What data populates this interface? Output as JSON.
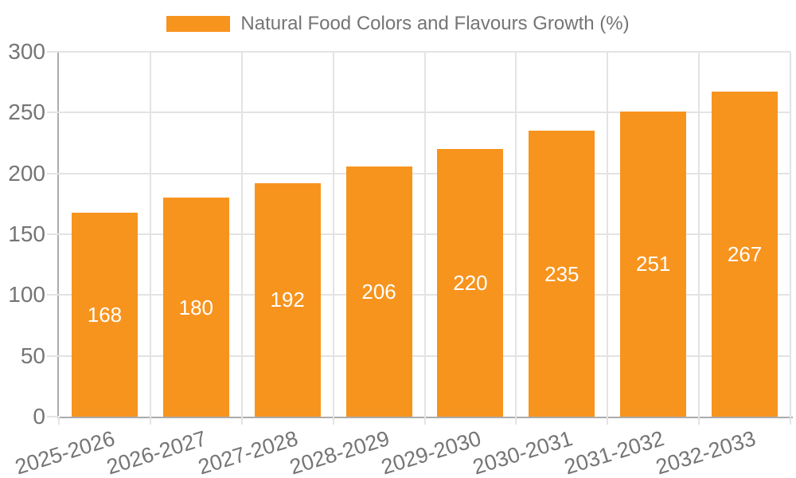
{
  "legend": {
    "label": "Natural Food Colors and Flavours Growth (%)"
  },
  "chart_data": {
    "type": "bar",
    "title": "",
    "series_name": "Natural Food Colors and Flavours Growth (%)",
    "categories": [
      "2025-2026",
      "2026-2027",
      "2027-2028",
      "2028-2029",
      "2029-2030",
      "2030-2031",
      "2031-2032",
      "2032-2033"
    ],
    "values": [
      168,
      180,
      192,
      206,
      220,
      235,
      251,
      267
    ],
    "xlabel": "",
    "ylabel": "",
    "ylim": [
      0,
      300
    ],
    "yticks": [
      0,
      50,
      100,
      150,
      200,
      250,
      300
    ],
    "grid": true,
    "legend_position": "top-center",
    "bar_label_position": "center-inside",
    "x_label_rotation_deg": -17,
    "colors": {
      "bar": "#F7941E",
      "bar_label": "#FFFFFF",
      "axis_text": "#757575",
      "axis_line": "#ABABAB",
      "gridline": "#E3E3E3",
      "background": "#FFFFFF"
    }
  }
}
